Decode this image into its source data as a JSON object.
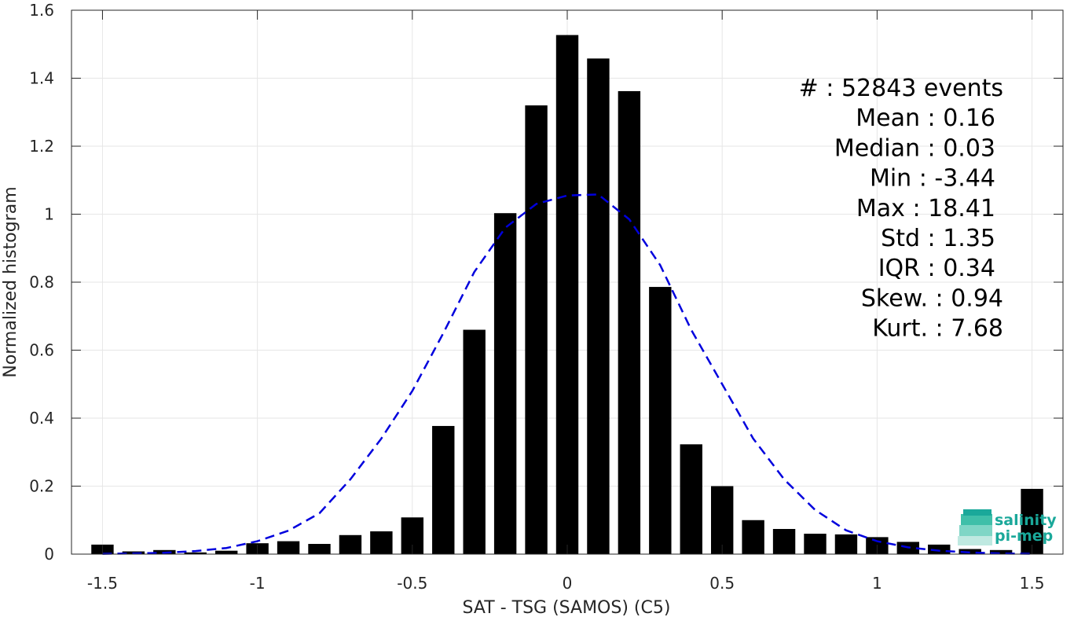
{
  "chart_data": {
    "type": "bar",
    "xlabel": "SAT - TSG (SAMOS) (C5)",
    "ylabel": "Normalized histogram",
    "xlim": [
      -1.6,
      1.6
    ],
    "ylim": [
      0,
      1.6
    ],
    "grid": true,
    "xticks": [
      -1.5,
      -1,
      -0.5,
      0,
      0.5,
      1,
      1.5
    ],
    "xtick_labels": [
      "-1.5",
      "-1",
      "-0.5",
      "0",
      "0.5",
      "1",
      "1.5"
    ],
    "yticks": [
      0,
      0.2,
      0.4,
      0.6,
      0.8,
      1,
      1.2,
      1.4,
      1.6
    ],
    "ytick_labels": [
      "0",
      "0.2",
      "0.4",
      "0.6",
      "0.8",
      "1",
      "1.2",
      "1.4",
      "1.6"
    ],
    "bar_color": "#000000",
    "bars": {
      "x": [
        -1.5,
        -1.4,
        -1.3,
        -1.2,
        -1.1,
        -1.0,
        -0.9,
        -0.8,
        -0.7,
        -0.6,
        -0.5,
        -0.4,
        -0.3,
        -0.2,
        -0.1,
        0.0,
        0.1,
        0.2,
        0.3,
        0.4,
        0.5,
        0.6,
        0.7,
        0.8,
        0.9,
        1.0,
        1.1,
        1.2,
        1.3,
        1.4,
        1.5
      ],
      "values": [
        0.028,
        0.008,
        0.012,
        0.005,
        0.01,
        0.032,
        0.038,
        0.03,
        0.056,
        0.067,
        0.108,
        0.377,
        0.66,
        1.003,
        1.32,
        1.527,
        1.458,
        1.362,
        0.786,
        0.323,
        0.2,
        0.1,
        0.074,
        0.06,
        0.058,
        0.05,
        0.036,
        0.028,
        0.015,
        0.012,
        0.192
      ]
    },
    "fit_curve": {
      "style": "dashed",
      "color": "#0000dd",
      "x": [
        -1.5,
        -1.4,
        -1.3,
        -1.2,
        -1.1,
        -1.0,
        -0.9,
        -0.8,
        -0.7,
        -0.6,
        -0.5,
        -0.4,
        -0.3,
        -0.2,
        -0.1,
        0.0,
        0.1,
        0.2,
        0.3,
        0.4,
        0.5,
        0.6,
        0.7,
        0.8,
        0.9,
        1.0,
        1.1,
        1.2,
        1.3,
        1.4,
        1.5
      ],
      "values": [
        0.001,
        0.002,
        0.004,
        0.009,
        0.018,
        0.038,
        0.069,
        0.12,
        0.22,
        0.34,
        0.48,
        0.65,
        0.83,
        0.96,
        1.03,
        1.055,
        1.058,
        0.985,
        0.85,
        0.66,
        0.5,
        0.34,
        0.22,
        0.13,
        0.07,
        0.038,
        0.02,
        0.01,
        0.005,
        0.002,
        0.001
      ]
    },
    "annotations": [
      "#  : 52843 events",
      "Mean : 0.16",
      "Median : 0.03",
      "Min : -3.44",
      "Max : 18.41",
      "Std : 1.35",
      "IQR : 0.34",
      "Skew. : 0.94",
      "Kurt. : 7.68"
    ]
  },
  "logo": {
    "line1": "salinity",
    "line2": "pi-mep",
    "color": "#1aa89a"
  }
}
